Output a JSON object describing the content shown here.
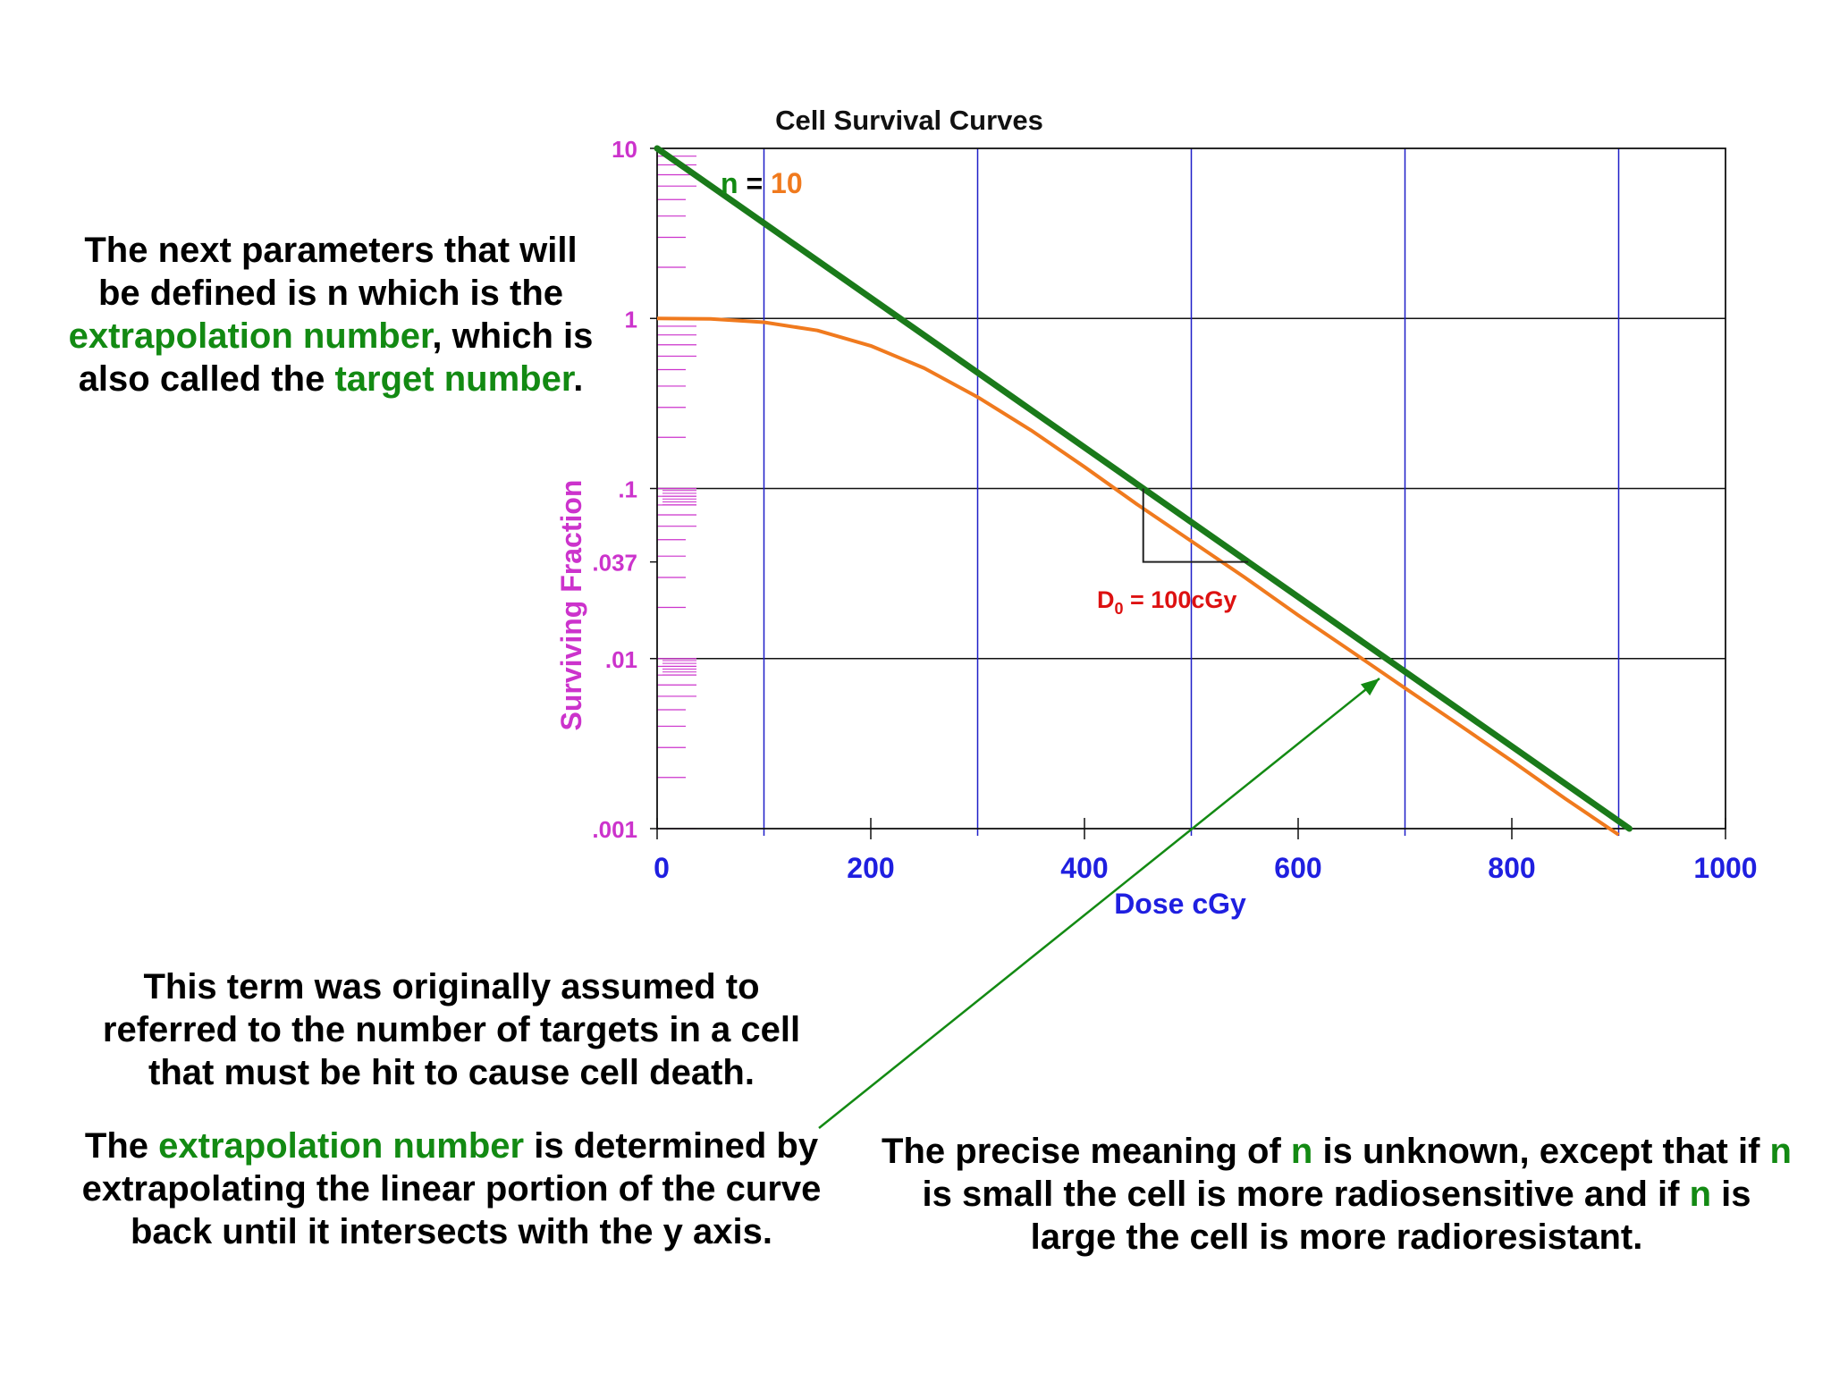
{
  "colors": {
    "accent_green": "#138a13",
    "fitted_curve": "#f07a1e",
    "extrapolation_line": "#1a7a1a",
    "vertical_grid": "#1f1fc8",
    "y_labels": "#cc33cc",
    "x_labels": "#1f1fe0",
    "d0_label": "#dd1111"
  },
  "chart_data": {
    "type": "line",
    "title": "Cell Survival Curves",
    "xlabel": "Dose cGy",
    "ylabel": "Surviving Fraction",
    "xlim": [
      0,
      1000
    ],
    "ylim": [
      0.001,
      10
    ],
    "yscale": "log",
    "grid": true,
    "x_ticks": [
      0,
      200,
      400,
      600,
      800,
      1000
    ],
    "x_tick_labels": [
      "0",
      "200",
      "400",
      "600",
      "800",
      "1000"
    ],
    "y_ticks": [
      10,
      1,
      0.1,
      0.037,
      0.01,
      0.001
    ],
    "y_tick_labels": [
      "10",
      "1",
      ".1",
      ".037",
      ".01",
      ".001"
    ],
    "series": [
      {
        "role": "survival_curve",
        "x": [
          0,
          50,
          100,
          150,
          200,
          250,
          300,
          350,
          400,
          450,
          500,
          550,
          600,
          650,
          700,
          750,
          800,
          850,
          900
        ],
        "y": [
          1.0,
          0.993,
          0.95,
          0.85,
          0.69,
          0.51,
          0.345,
          0.22,
          0.134,
          0.08,
          0.049,
          0.03,
          0.018,
          0.011,
          0.0067,
          0.0041,
          0.0025,
          0.0015,
          0.00092
        ]
      },
      {
        "role": "extrapolation_line",
        "x": [
          0,
          910
        ],
        "y": [
          10,
          0.001
        ]
      }
    ],
    "annotations": [
      {
        "id": "n",
        "parts": [
          {
            "text": "n",
            "color": "#138a13"
          },
          {
            "text": " = ",
            "color": "#000000"
          },
          {
            "text": "10",
            "color": "#f07a1e"
          }
        ]
      },
      {
        "id": "d0",
        "main": "D",
        "sub": "0",
        "rest": " = 100cGy",
        "color": "#dd1111"
      }
    ]
  },
  "notes": {
    "top_left": [
      [
        {
          "text": "The next parameters that will"
        }
      ],
      [
        {
          "text": "be defined is n which is the"
        }
      ],
      [
        {
          "text": "extrapolation number",
          "accent": true
        },
        {
          "text": ", which is"
        }
      ],
      [
        {
          "text": "also called the "
        },
        {
          "text": "target number",
          "accent": true
        },
        {
          "text": "."
        }
      ]
    ],
    "mid_left": [
      [
        {
          "text": "This term was originally assumed to"
        }
      ],
      [
        {
          "text": "referred to the number of targets in a cell"
        }
      ],
      [
        {
          "text": "that must be hit to cause cell death."
        }
      ]
    ],
    "bottom_left": [
      [
        {
          "text": "The "
        },
        {
          "text": "extrapolation number",
          "accent": true
        },
        {
          "text": " is determined by"
        }
      ],
      [
        {
          "text": "extrapolating the linear portion of the curve"
        }
      ],
      [
        {
          "text": "back until it intersects with the y axis."
        }
      ]
    ],
    "bottom_right": [
      [
        {
          "text": "The precise meaning of "
        },
        {
          "text": "n",
          "accent": true
        },
        {
          "text": " is unknown, except that if "
        },
        {
          "text": "n",
          "accent": true
        }
      ],
      [
        {
          "text": "is small the cell is more radiosensitive and if "
        },
        {
          "text": "n",
          "accent": true
        },
        {
          "text": " is"
        }
      ],
      [
        {
          "text": "large the cell is more radioresistant."
        }
      ]
    ]
  }
}
